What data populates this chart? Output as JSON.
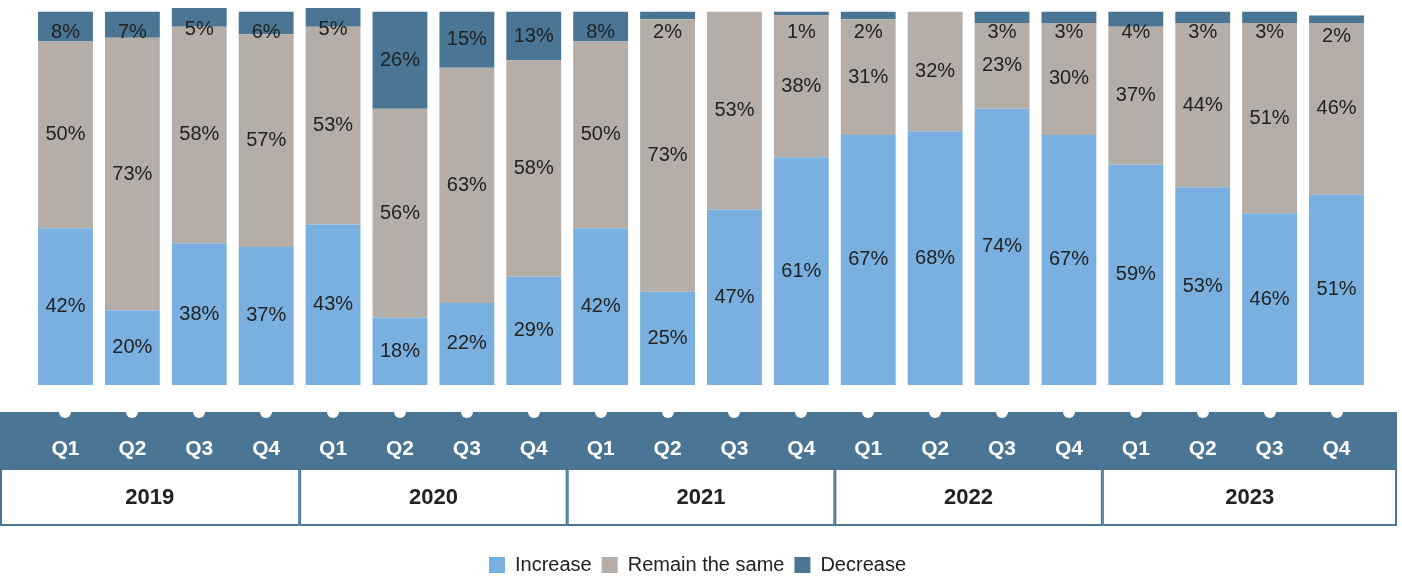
{
  "chart_data": {
    "type": "bar",
    "stacked": true,
    "legend": "bottom",
    "categories": [
      "Q1",
      "Q2",
      "Q3",
      "Q4",
      "Q1",
      "Q2",
      "Q3",
      "Q4",
      "Q1",
      "Q2",
      "Q3",
      "Q4",
      "Q1",
      "Q2",
      "Q3",
      "Q4",
      "Q1",
      "Q2",
      "Q3",
      "Q4"
    ],
    "annotations": [
      "2019",
      "2020",
      "2021",
      "2022",
      "2023"
    ],
    "series": [
      {
        "name": "Increase",
        "color": "#7ab0e0",
        "values": [
          42,
          20,
          38,
          37,
          43,
          18,
          22,
          29,
          42,
          25,
          47,
          61,
          67,
          68,
          74,
          67,
          59,
          53,
          46,
          51
        ],
        "value_labels": [
          "42%",
          "20%",
          "38%",
          "37%",
          "43%",
          "18%",
          "22%",
          "29%",
          "42%",
          "25%",
          "47%",
          "61%",
          "67%",
          "68%",
          "74%",
          "67%",
          "59%",
          "53%",
          "46%",
          "51%"
        ]
      },
      {
        "name": "Remain the same",
        "color": "#b5aea8",
        "values": [
          50,
          73,
          58,
          57,
          53,
          56,
          63,
          58,
          50,
          73,
          53,
          38,
          31,
          32,
          23,
          30,
          37,
          44,
          51,
          46
        ],
        "value_labels": [
          "50%",
          "73%",
          "58%",
          "57%",
          "53%",
          "56%",
          "63%",
          "58%",
          "50%",
          "73%",
          "53%",
          "38%",
          "31%",
          "32%",
          "23%",
          "30%",
          "37%",
          "44%",
          "51%",
          "46%"
        ]
      },
      {
        "name": "Decrease",
        "color": "#4a7595",
        "values": [
          8,
          7,
          5,
          6,
          5,
          26,
          15,
          13,
          8,
          2,
          0,
          1,
          2,
          0,
          3,
          3,
          4,
          3,
          3,
          2
        ],
        "value_labels": [
          "8%",
          "7%",
          "5%",
          "6%",
          "5%",
          "26%",
          "15%",
          "13%",
          "8%",
          "2%",
          null,
          "1%",
          "2%",
          null,
          "3%",
          "3%",
          "4%",
          "3%",
          "3%",
          "2%"
        ]
      }
    ]
  }
}
